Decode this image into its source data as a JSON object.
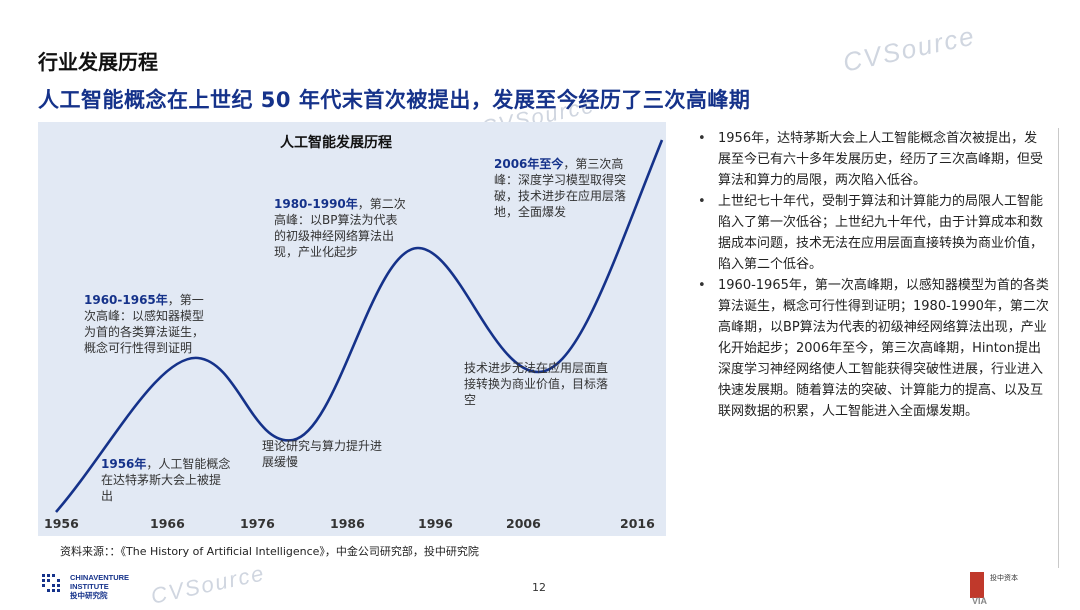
{
  "page": {
    "title": "行业发展历程",
    "subtitle": "人工智能概念在上世纪 50 年代末首次被提出，发展至今经历了三次高峰期",
    "page_number": "12"
  },
  "chart": {
    "title": "人工智能发展历程",
    "x_ticks": [
      "1956",
      "1966",
      "1976",
      "1986",
      "1996",
      "2006",
      "2016"
    ],
    "annotations": [
      {
        "id": "a1956",
        "bold": "1956年",
        "text": "，人工智能概念在达特茅斯大会上被提出"
      },
      {
        "id": "a1960",
        "bold": "1960-1965年",
        "text": "，第一次高峰：以感知器模型为首的各类算法诞生，概念可行性得到证明"
      },
      {
        "id": "a1970",
        "bold": "",
        "text": "理论研究与算力提升进展缓慢"
      },
      {
        "id": "a1980",
        "bold": "1980-1990年",
        "text": "，第二次高峰：以BP算法为代表的初级神经网络算法出现，产业化起步"
      },
      {
        "id": "a2000",
        "bold": "",
        "text": "技术进步无法在应用层面直接转换为商业价值，目标落空"
      },
      {
        "id": "a2006",
        "bold": "2006年至今",
        "text": "，第三次高峰：深度学习模型取得突破，技术进步在应用层落地，全面爆发"
      }
    ],
    "line_color": "#15328a"
  },
  "source_note": "资料来源：：《The History of Artificial Intelligence》，中金公司研究部，投中研究院",
  "bullets": [
    "1956年，达特茅斯大会上人工智能概念首次被提出，发展至今已有六十多年发展历史，经历了三次高峰期，但受算法和算力的局限，两次陷入低谷。",
    "上世纪七十年代，受制于算法和计算能力的局限人工智能陷入了第一次低谷；上世纪九十年代，由于计算成本和数据成本问题，技术无法在应用层面直接转换为商业价值，陷入第二个低谷。",
    "1960-1965年，第一次高峰期，以感知器模型为首的各类算法诞生，概念可行性得到证明；1980-1990年，第二次高峰期，以BP算法为代表的初级神经网络算法出现，产业化开始起步；2006年至今，第三次高峰期，Hinton提出深度学习神经网络使人工智能获得突破性进展，行业进入快速发展期。随着算法的突破、计算能力的提高、以及互联网数据的积累，人工智能进入全面爆发期。"
  ],
  "footer": {
    "left_logo_line1": "CHINAVENTURE",
    "left_logo_line2": "INSTITUTE",
    "left_logo_line3": "投中研究院",
    "right_logo": "VIA",
    "right_logo_cn": "投中资本"
  },
  "watermark": "CVSource"
}
